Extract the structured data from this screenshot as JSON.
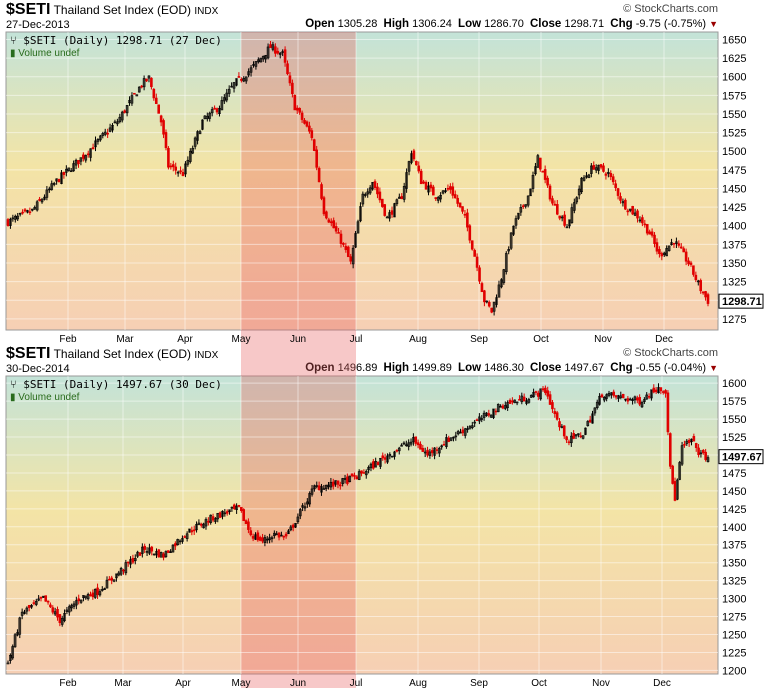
{
  "charts": [
    {
      "symbol": "$SETI",
      "name": "Thailand Set Index (EOD)",
      "exchange": "INDX",
      "date": "27-Dec-2013",
      "watermark": "© StockCharts.com",
      "open_label": "Open",
      "open": "1305.28",
      "high_label": "High",
      "high": "1306.24",
      "low_label": "Low",
      "low": "1286.70",
      "close_label": "Close",
      "close": "1298.71",
      "chg_label": "Chg",
      "chg": "-9.75 (-0.75%)",
      "legend": "$SETI (Daily) 1298.71 (27 Dec)",
      "volume": "Volume undef",
      "last_label": "1298.71"
    },
    {
      "symbol": "$SETI",
      "name": "Thailand Set Index (EOD)",
      "exchange": "INDX",
      "date": "30-Dec-2014",
      "watermark": "© StockCharts.com",
      "open_label": "Open",
      "open": "1496.89",
      "high_label": "High",
      "high": "1499.89",
      "low_label": "Low",
      "low": "1486.30",
      "close_label": "Close",
      "close": "1497.67",
      "chg_label": "Chg",
      "chg": "-0.55 (-0.04%)",
      "legend": "$SETI (Daily) 1497.67 (30 Dec)",
      "volume": "Volume undef",
      "last_label": "1497.67"
    }
  ],
  "colors": {
    "up": "#000000",
    "down": "#e00000",
    "band": "#e86060",
    "top": "#c3e3d8",
    "mid": "#f3e4a6",
    "bottom": "#f6cfb4"
  },
  "chart_data": [
    {
      "type": "candlestick",
      "title": "$SETI Thailand Set Index (EOD) 2013",
      "ylim": [
        1260,
        1660
      ],
      "yticks": [
        1275,
        1300,
        1325,
        1350,
        1375,
        1400,
        1425,
        1450,
        1475,
        1500,
        1525,
        1550,
        1575,
        1600,
        1625,
        1650
      ],
      "months": [
        "Feb",
        "Mar",
        "Apr",
        "May",
        "Jun",
        "Jul",
        "Aug",
        "Sep",
        "Oct",
        "Nov",
        "Dec"
      ],
      "highlight": [
        "May",
        "Jul"
      ],
      "waypoints": [
        [
          0,
          1405
        ],
        [
          10,
          1420
        ],
        [
          20,
          1460
        ],
        [
          30,
          1490
        ],
        [
          45,
          1540
        ],
        [
          55,
          1590
        ],
        [
          58,
          1598
        ],
        [
          63,
          1540
        ],
        [
          66,
          1480
        ],
        [
          72,
          1470
        ],
        [
          80,
          1540
        ],
        [
          87,
          1560
        ],
        [
          93,
          1590
        ],
        [
          100,
          1610
        ],
        [
          108,
          1640
        ],
        [
          113,
          1630
        ],
        [
          118,
          1560
        ],
        [
          125,
          1520
        ],
        [
          130,
          1420
        ],
        [
          137,
          1380
        ],
        [
          141,
          1350
        ],
        [
          146,
          1440
        ],
        [
          150,
          1460
        ],
        [
          156,
          1410
        ],
        [
          162,
          1440
        ],
        [
          166,
          1500
        ],
        [
          170,
          1460
        ],
        [
          176,
          1440
        ],
        [
          182,
          1450
        ],
        [
          188,
          1410
        ],
        [
          192,
          1360
        ],
        [
          196,
          1300
        ],
        [
          199,
          1285
        ],
        [
          203,
          1330
        ],
        [
          208,
          1400
        ],
        [
          214,
          1440
        ],
        [
          218,
          1490
        ],
        [
          224,
          1430
        ],
        [
          230,
          1400
        ],
        [
          236,
          1460
        ],
        [
          241,
          1480
        ],
        [
          247,
          1470
        ],
        [
          253,
          1430
        ],
        [
          260,
          1410
        ],
        [
          264,
          1390
        ],
        [
          268,
          1360
        ],
        [
          274,
          1380
        ],
        [
          280,
          1350
        ],
        [
          285,
          1315
        ],
        [
          288,
          1299
        ]
      ]
    },
    {
      "type": "candlestick",
      "title": "$SETI Thailand Set Index (EOD) 2014",
      "ylim": [
        1195,
        1610
      ],
      "yticks": [
        1200,
        1225,
        1250,
        1275,
        1300,
        1325,
        1350,
        1375,
        1400,
        1425,
        1450,
        1475,
        1500,
        1525,
        1550,
        1575,
        1600
      ],
      "months": [
        "Feb",
        "Mar",
        "Apr",
        "May",
        "Jun",
        "Jul",
        "Aug",
        "Sep",
        "Oct",
        "Nov",
        "Dec"
      ],
      "highlight": [
        "May",
        "Jul"
      ],
      "waypoints": [
        [
          0,
          1210
        ],
        [
          6,
          1280
        ],
        [
          15,
          1300
        ],
        [
          22,
          1270
        ],
        [
          30,
          1300
        ],
        [
          38,
          1310
        ],
        [
          45,
          1330
        ],
        [
          58,
          1370
        ],
        [
          66,
          1360
        ],
        [
          75,
          1390
        ],
        [
          85,
          1410
        ],
        [
          92,
          1420
        ],
        [
          98,
          1425
        ],
        [
          103,
          1390
        ],
        [
          108,
          1380
        ],
        [
          113,
          1390
        ],
        [
          118,
          1385
        ],
        [
          124,
          1420
        ],
        [
          130,
          1455
        ],
        [
          140,
          1460
        ],
        [
          148,
          1470
        ],
        [
          157,
          1490
        ],
        [
          166,
          1510
        ],
        [
          172,
          1520
        ],
        [
          178,
          1500
        ],
        [
          186,
          1520
        ],
        [
          198,
          1545
        ],
        [
          210,
          1570
        ],
        [
          220,
          1580
        ],
        [
          228,
          1590
        ],
        [
          234,
          1540
        ],
        [
          238,
          1520
        ],
        [
          244,
          1530
        ],
        [
          252,
          1585
        ],
        [
          260,
          1580
        ],
        [
          268,
          1575
        ],
        [
          276,
          1595
        ],
        [
          279,
          1590
        ],
        [
          281,
          1480
        ],
        [
          283,
          1440
        ],
        [
          286,
          1510
        ],
        [
          290,
          1520
        ],
        [
          294,
          1500
        ],
        [
          297,
          1497
        ]
      ]
    }
  ]
}
